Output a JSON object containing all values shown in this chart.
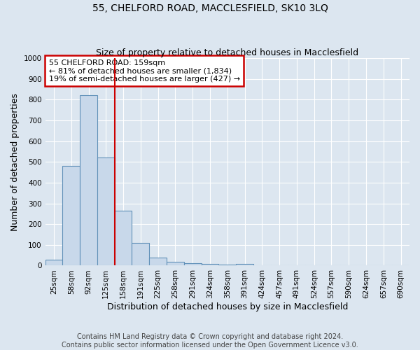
{
  "title": "55, CHELFORD ROAD, MACCLESFIELD, SK10 3LQ",
  "subtitle": "Size of property relative to detached houses in Macclesfield",
  "xlabel": "Distribution of detached houses by size in Macclesfield",
  "ylabel": "Number of detached properties",
  "footer_line1": "Contains HM Land Registry data © Crown copyright and database right 2024.",
  "footer_line2": "Contains public sector information licensed under the Open Government Licence v3.0.",
  "annotation_line1": "55 CHELFORD ROAD: 159sqm",
  "annotation_line2": "← 81% of detached houses are smaller (1,834)",
  "annotation_line3": "19% of semi-detached houses are larger (427) →",
  "bar_labels": [
    "25sqm",
    "58sqm",
    "92sqm",
    "125sqm",
    "158sqm",
    "191sqm",
    "225sqm",
    "258sqm",
    "291sqm",
    "324sqm",
    "358sqm",
    "391sqm",
    "424sqm",
    "457sqm",
    "491sqm",
    "524sqm",
    "557sqm",
    "590sqm",
    "624sqm",
    "657sqm",
    "690sqm"
  ],
  "bar_values": [
    30,
    480,
    820,
    520,
    265,
    110,
    38,
    20,
    10,
    8,
    5,
    8,
    0,
    0,
    0,
    0,
    0,
    0,
    0,
    0,
    0
  ],
  "bar_color": "#c8d8ea",
  "bar_edge_color": "#6090b8",
  "vline_x": 3.5,
  "vline_color": "#cc0000",
  "ylim": [
    0,
    1000
  ],
  "yticks": [
    0,
    100,
    200,
    300,
    400,
    500,
    600,
    700,
    800,
    900,
    1000
  ],
  "bg_color": "#dce6f0",
  "plot_bg_color": "#dce6f0",
  "grid_color": "#ffffff",
  "annotation_box_facecolor": "#ffffff",
  "annotation_box_edgecolor": "#cc0000",
  "title_fontsize": 10,
  "subtitle_fontsize": 9,
  "axis_label_fontsize": 9,
  "tick_fontsize": 7.5,
  "footer_fontsize": 7,
  "annotation_fontsize": 8
}
